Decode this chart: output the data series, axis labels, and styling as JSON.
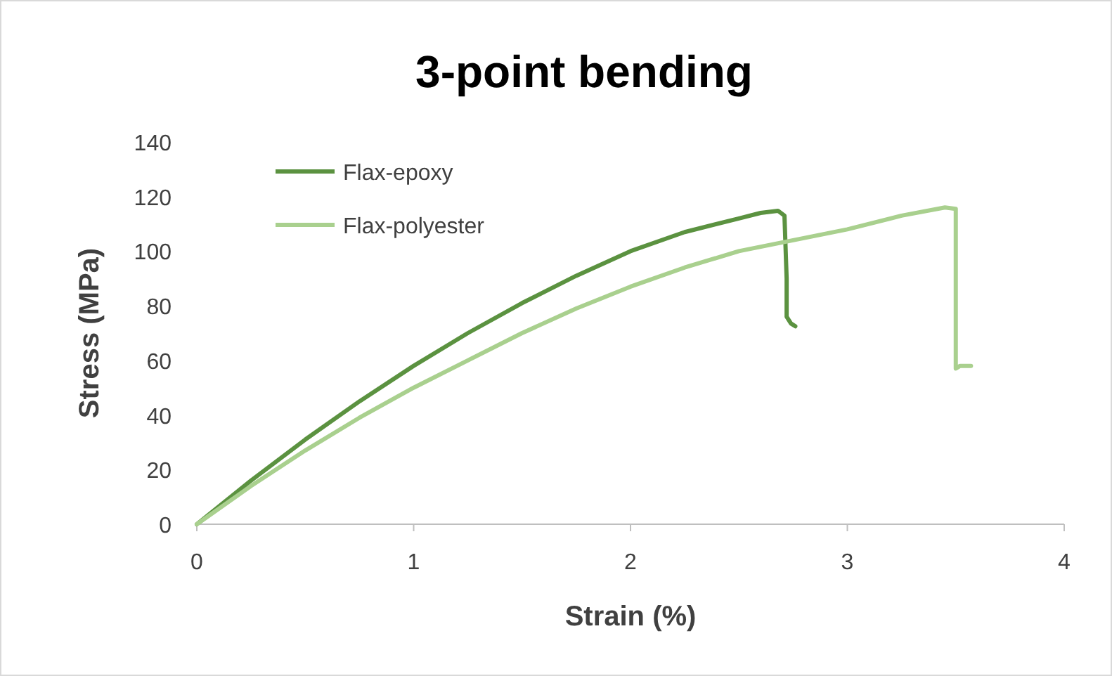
{
  "chart_data": {
    "type": "line",
    "title": "3-point bending",
    "xlabel": "Strain (%)",
    "ylabel": "Stress (MPa)",
    "xlim": [
      0,
      4
    ],
    "ylim": [
      0,
      140
    ],
    "xticks": [
      0,
      1,
      2,
      3,
      4
    ],
    "yticks": [
      0,
      20,
      40,
      60,
      80,
      100,
      120,
      140
    ],
    "grid": false,
    "legend": "top left",
    "marker": "none",
    "line_style": "solid",
    "series": [
      {
        "name": "Flax-epoxy",
        "color": "#5b9240",
        "x": [
          0,
          0.25,
          0.5,
          0.75,
          1,
          1.25,
          1.5,
          1.75,
          2,
          2.25,
          2.5,
          2.6,
          2.68,
          2.71,
          2.72,
          2.72,
          2.74,
          2.76
        ],
        "values": [
          0,
          16,
          31,
          45,
          58,
          70,
          81,
          91,
          100,
          107,
          112,
          114,
          114.8,
          113,
          90,
          76,
          73.5,
          72.5
        ]
      },
      {
        "name": "Flax-polyester",
        "color": "#a9d08e",
        "x": [
          0,
          0.25,
          0.5,
          0.75,
          1,
          1.25,
          1.5,
          1.75,
          2,
          2.25,
          2.5,
          2.75,
          3,
          3.25,
          3.45,
          3.5,
          3.5,
          3.52,
          3.57
        ],
        "values": [
          0,
          14,
          27,
          39,
          50,
          60,
          70,
          79,
          87,
          94,
          100,
          104,
          108,
          113,
          116,
          115.5,
          57,
          58,
          58
        ]
      }
    ]
  }
}
